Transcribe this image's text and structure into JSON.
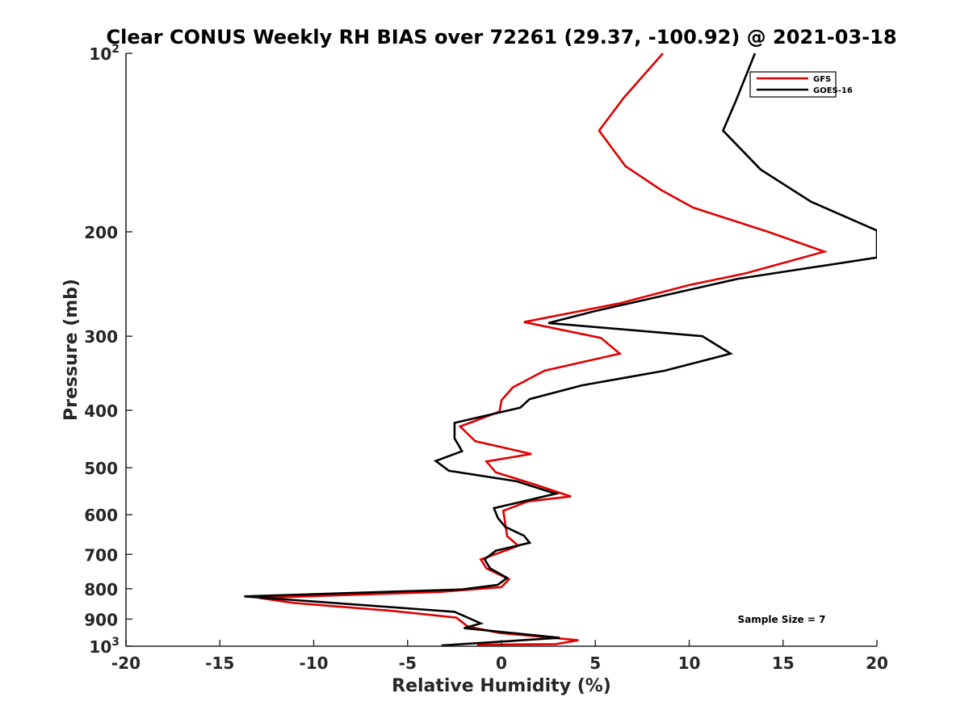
{
  "chart_data": {
    "type": "line",
    "title": "Clear CONUS Weekly RH BIAS over 72261 (29.37, -100.92) @ 2021-03-18",
    "xlabel": "Relative Humidity (%)",
    "ylabel": "Pressure (mb)",
    "xlim": [
      -20,
      20
    ],
    "ylim": [
      1000,
      100
    ],
    "yscale": "log",
    "y_reversed": true,
    "xticks": [
      "-20",
      "-15",
      "-10",
      "-5",
      "0",
      "5",
      "10",
      "15",
      "20"
    ],
    "yticks": [
      {
        "value": 100,
        "base": "10",
        "exp": "2"
      },
      {
        "value": 200,
        "base": "200",
        "exp": ""
      },
      {
        "value": 300,
        "base": "300",
        "exp": ""
      },
      {
        "value": 400,
        "base": "400",
        "exp": ""
      },
      {
        "value": 500,
        "base": "500",
        "exp": ""
      },
      {
        "value": 600,
        "base": "600",
        "exp": ""
      },
      {
        "value": 700,
        "base": "700",
        "exp": ""
      },
      {
        "value": 800,
        "base": "800",
        "exp": ""
      },
      {
        "value": 900,
        "base": "900",
        "exp": ""
      },
      {
        "value": 1000,
        "base": "10",
        "exp": "3"
      }
    ],
    "grid": false,
    "legend_position": "top-right",
    "annotation": "Sample Size = 7",
    "series": [
      {
        "name": "GFS",
        "color": "#e00000",
        "points": [
          [
            8.6,
            100
          ],
          [
            6.5,
            119
          ],
          [
            5.2,
            135
          ],
          [
            6.6,
            155
          ],
          [
            8.5,
            170
          ],
          [
            10.2,
            182
          ],
          [
            14.2,
            200
          ],
          [
            17.2,
            216
          ],
          [
            13.0,
            235
          ],
          [
            10.0,
            246
          ],
          [
            6.3,
            264
          ],
          [
            1.2,
            284
          ],
          [
            5.3,
            302
          ],
          [
            6.3,
            321
          ],
          [
            2.3,
            343
          ],
          [
            0.6,
            366
          ],
          [
            0.0,
            385
          ],
          [
            -0.1,
            402
          ],
          [
            -2.2,
            426
          ],
          [
            -1.4,
            451
          ],
          [
            1.6,
            474
          ],
          [
            -0.8,
            488
          ],
          [
            -0.3,
            509
          ],
          [
            1.8,
            534
          ],
          [
            3.7,
            559
          ],
          [
            1.4,
            570
          ],
          [
            0.1,
            591
          ],
          [
            0.2,
            620
          ],
          [
            0.3,
            652
          ],
          [
            0.9,
            677
          ],
          [
            -1.1,
            714
          ],
          [
            -0.8,
            739
          ],
          [
            0.4,
            771
          ],
          [
            0.0,
            795
          ],
          [
            -3.3,
            810
          ],
          [
            -12.9,
            829
          ],
          [
            -11.1,
            845
          ],
          [
            -5.8,
            872
          ],
          [
            -2.4,
            895
          ],
          [
            -1.8,
            926
          ],
          [
            -0.1,
            950
          ],
          [
            4.1,
            977
          ],
          [
            2.9,
            992
          ],
          [
            -1.3,
            994
          ]
        ]
      },
      {
        "name": "GOES-16",
        "color": "#000000",
        "points": [
          [
            13.5,
            100
          ],
          [
            12.5,
            120
          ],
          [
            11.8,
            135
          ],
          [
            13.8,
            157
          ],
          [
            16.5,
            178
          ],
          [
            20.0,
            199
          ],
          [
            20.0,
            221
          ],
          [
            12.6,
            240
          ],
          [
            8.7,
            256
          ],
          [
            5.0,
            272
          ],
          [
            2.5,
            285
          ],
          [
            10.7,
            300
          ],
          [
            12.2,
            321
          ],
          [
            8.7,
            343
          ],
          [
            4.3,
            363
          ],
          [
            1.5,
            383
          ],
          [
            1.0,
            396
          ],
          [
            -2.5,
            420
          ],
          [
            -2.5,
            446
          ],
          [
            -2.1,
            469
          ],
          [
            -3.5,
            487
          ],
          [
            -2.8,
            506
          ],
          [
            0.8,
            527
          ],
          [
            2.9,
            553
          ],
          [
            -0.4,
            585
          ],
          [
            -0.2,
            607
          ],
          [
            0.2,
            629
          ],
          [
            1.2,
            651
          ],
          [
            1.5,
            669
          ],
          [
            -0.3,
            690
          ],
          [
            -0.9,
            714
          ],
          [
            -0.6,
            739
          ],
          [
            0.3,
            767
          ],
          [
            -0.2,
            788
          ],
          [
            -2.1,
            802
          ],
          [
            -13.7,
            824
          ],
          [
            -2.5,
            875
          ],
          [
            -1.1,
            915
          ],
          [
            -2.0,
            932
          ],
          [
            3.1,
            968
          ],
          [
            -3.2,
            997
          ]
        ]
      }
    ]
  }
}
